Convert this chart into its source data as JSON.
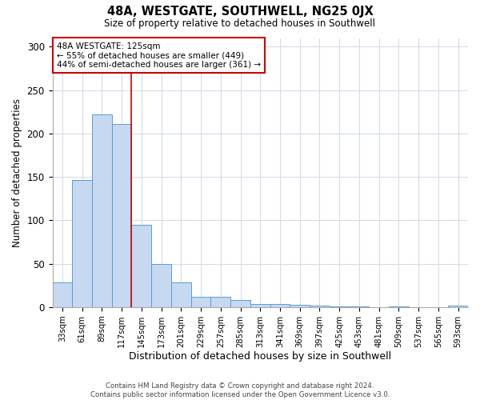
{
  "title": "48A, WESTGATE, SOUTHWELL, NG25 0JX",
  "subtitle": "Size of property relative to detached houses in Southwell",
  "xlabel": "Distribution of detached houses by size in Southwell",
  "ylabel": "Number of detached properties",
  "bar_labels": [
    "33sqm",
    "61sqm",
    "89sqm",
    "117sqm",
    "145sqm",
    "173sqm",
    "201sqm",
    "229sqm",
    "257sqm",
    "285sqm",
    "313sqm",
    "341sqm",
    "369sqm",
    "397sqm",
    "425sqm",
    "453sqm",
    "481sqm",
    "509sqm",
    "537sqm",
    "565sqm",
    "593sqm"
  ],
  "bar_values": [
    28,
    146,
    222,
    211,
    95,
    50,
    28,
    12,
    12,
    8,
    4,
    4,
    3,
    2,
    1,
    1,
    0,
    1,
    0,
    0,
    2
  ],
  "bar_color": "#c6d9f0",
  "bar_edge_color": "#5b9bd5",
  "ylim": [
    0,
    310
  ],
  "yticks": [
    0,
    50,
    100,
    150,
    200,
    250,
    300
  ],
  "vline_color": "#cc0000",
  "annotation_title": "48A WESTGATE: 125sqm",
  "annotation_line1": "← 55% of detached houses are smaller (449)",
  "annotation_line2": "44% of semi-detached houses are larger (361) →",
  "annotation_box_color": "#cc0000",
  "footer_line1": "Contains HM Land Registry data © Crown copyright and database right 2024.",
  "footer_line2": "Contains public sector information licensed under the Open Government Licence v3.0.",
  "background_color": "#ffffff",
  "grid_color": "#d0d8e8"
}
